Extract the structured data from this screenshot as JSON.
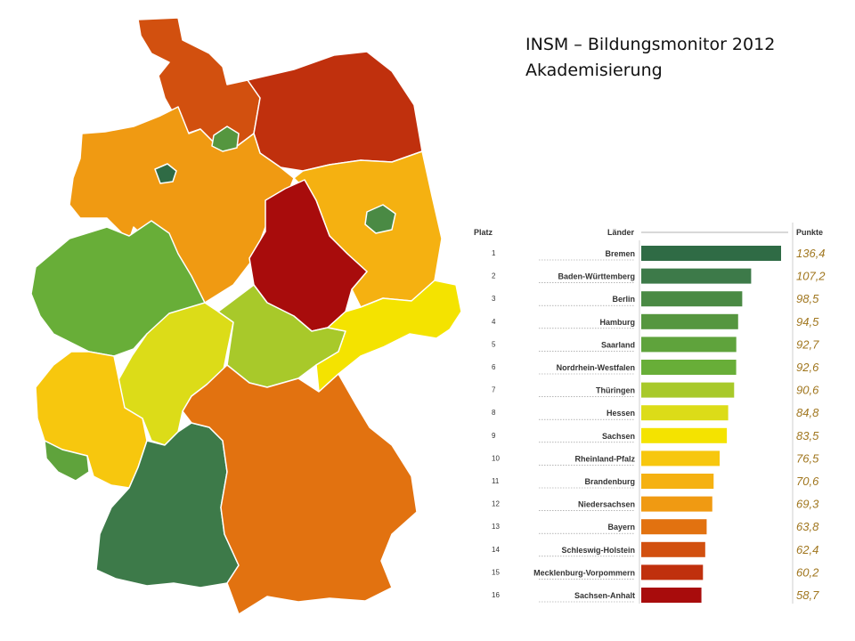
{
  "title": {
    "line1": "INSM – Bildungsmonitor 2012",
    "line2": "Akademisierung"
  },
  "table_headers": {
    "rank": "Platz",
    "land": "Länder",
    "points": "Punkte"
  },
  "chart_data": {
    "type": "bar",
    "orientation": "horizontal",
    "title": "INSM – Bildungsmonitor 2012 Akademisierung",
    "categories": [
      "Bremen",
      "Baden-Württemberg",
      "Berlin",
      "Hamburg",
      "Saarland",
      "Nordrhein-Westfalen",
      "Thüringen",
      "Hessen",
      "Sachsen",
      "Rheinland-Pfalz",
      "Brandenburg",
      "Niedersachsen",
      "Bayern",
      "Schleswig-Holstein",
      "Mecklenburg-Vorpommern",
      "Sachsen-Anhalt"
    ],
    "ranks": [
      1,
      2,
      3,
      4,
      5,
      6,
      7,
      8,
      9,
      10,
      11,
      12,
      13,
      14,
      15,
      16
    ],
    "values": [
      136.4,
      107.2,
      98.5,
      94.5,
      92.7,
      92.6,
      90.6,
      84.8,
      83.5,
      76.5,
      70.6,
      69.3,
      63.8,
      62.4,
      60.2,
      58.7
    ],
    "value_labels": [
      "136,4",
      "107,2",
      "98,5",
      "94,5",
      "92,7",
      "92,6",
      "90,6",
      "84,8",
      "83,5",
      "76,5",
      "70,6",
      "69,3",
      "63,8",
      "62,4",
      "60,2",
      "58,7"
    ],
    "colors": [
      "#2f6b45",
      "#3d7a49",
      "#4a8a44",
      "#55963f",
      "#5fa33c",
      "#68ae38",
      "#a8c92a",
      "#dcdc18",
      "#f4e300",
      "#f7c70e",
      "#f5b111",
      "#f09a12",
      "#e27210",
      "#d2500f",
      "#c0300d",
      "#a80c0c"
    ],
    "xlim": [
      0,
      140
    ]
  },
  "map_colors": {
    "Schleswig-Holstein": "#d2500f",
    "Mecklenburg-Vorpommern": "#c0300d",
    "Hamburg": "#55963f",
    "Bremen": "#2f6b45",
    "Niedersachsen": "#f09a12",
    "Brandenburg": "#f5b111",
    "Berlin": "#4a8a44",
    "Sachsen-Anhalt": "#a80c0c",
    "Nordrhein-Westfalen": "#68ae38",
    "Hessen": "#dcdc18",
    "Thüringen": "#a8c92a",
    "Sachsen": "#f4e300",
    "Rheinland-Pfalz": "#f7c70e",
    "Saarland": "#5fa33c",
    "Baden-Württemberg": "#3d7a49",
    "Bayern": "#e27210"
  }
}
